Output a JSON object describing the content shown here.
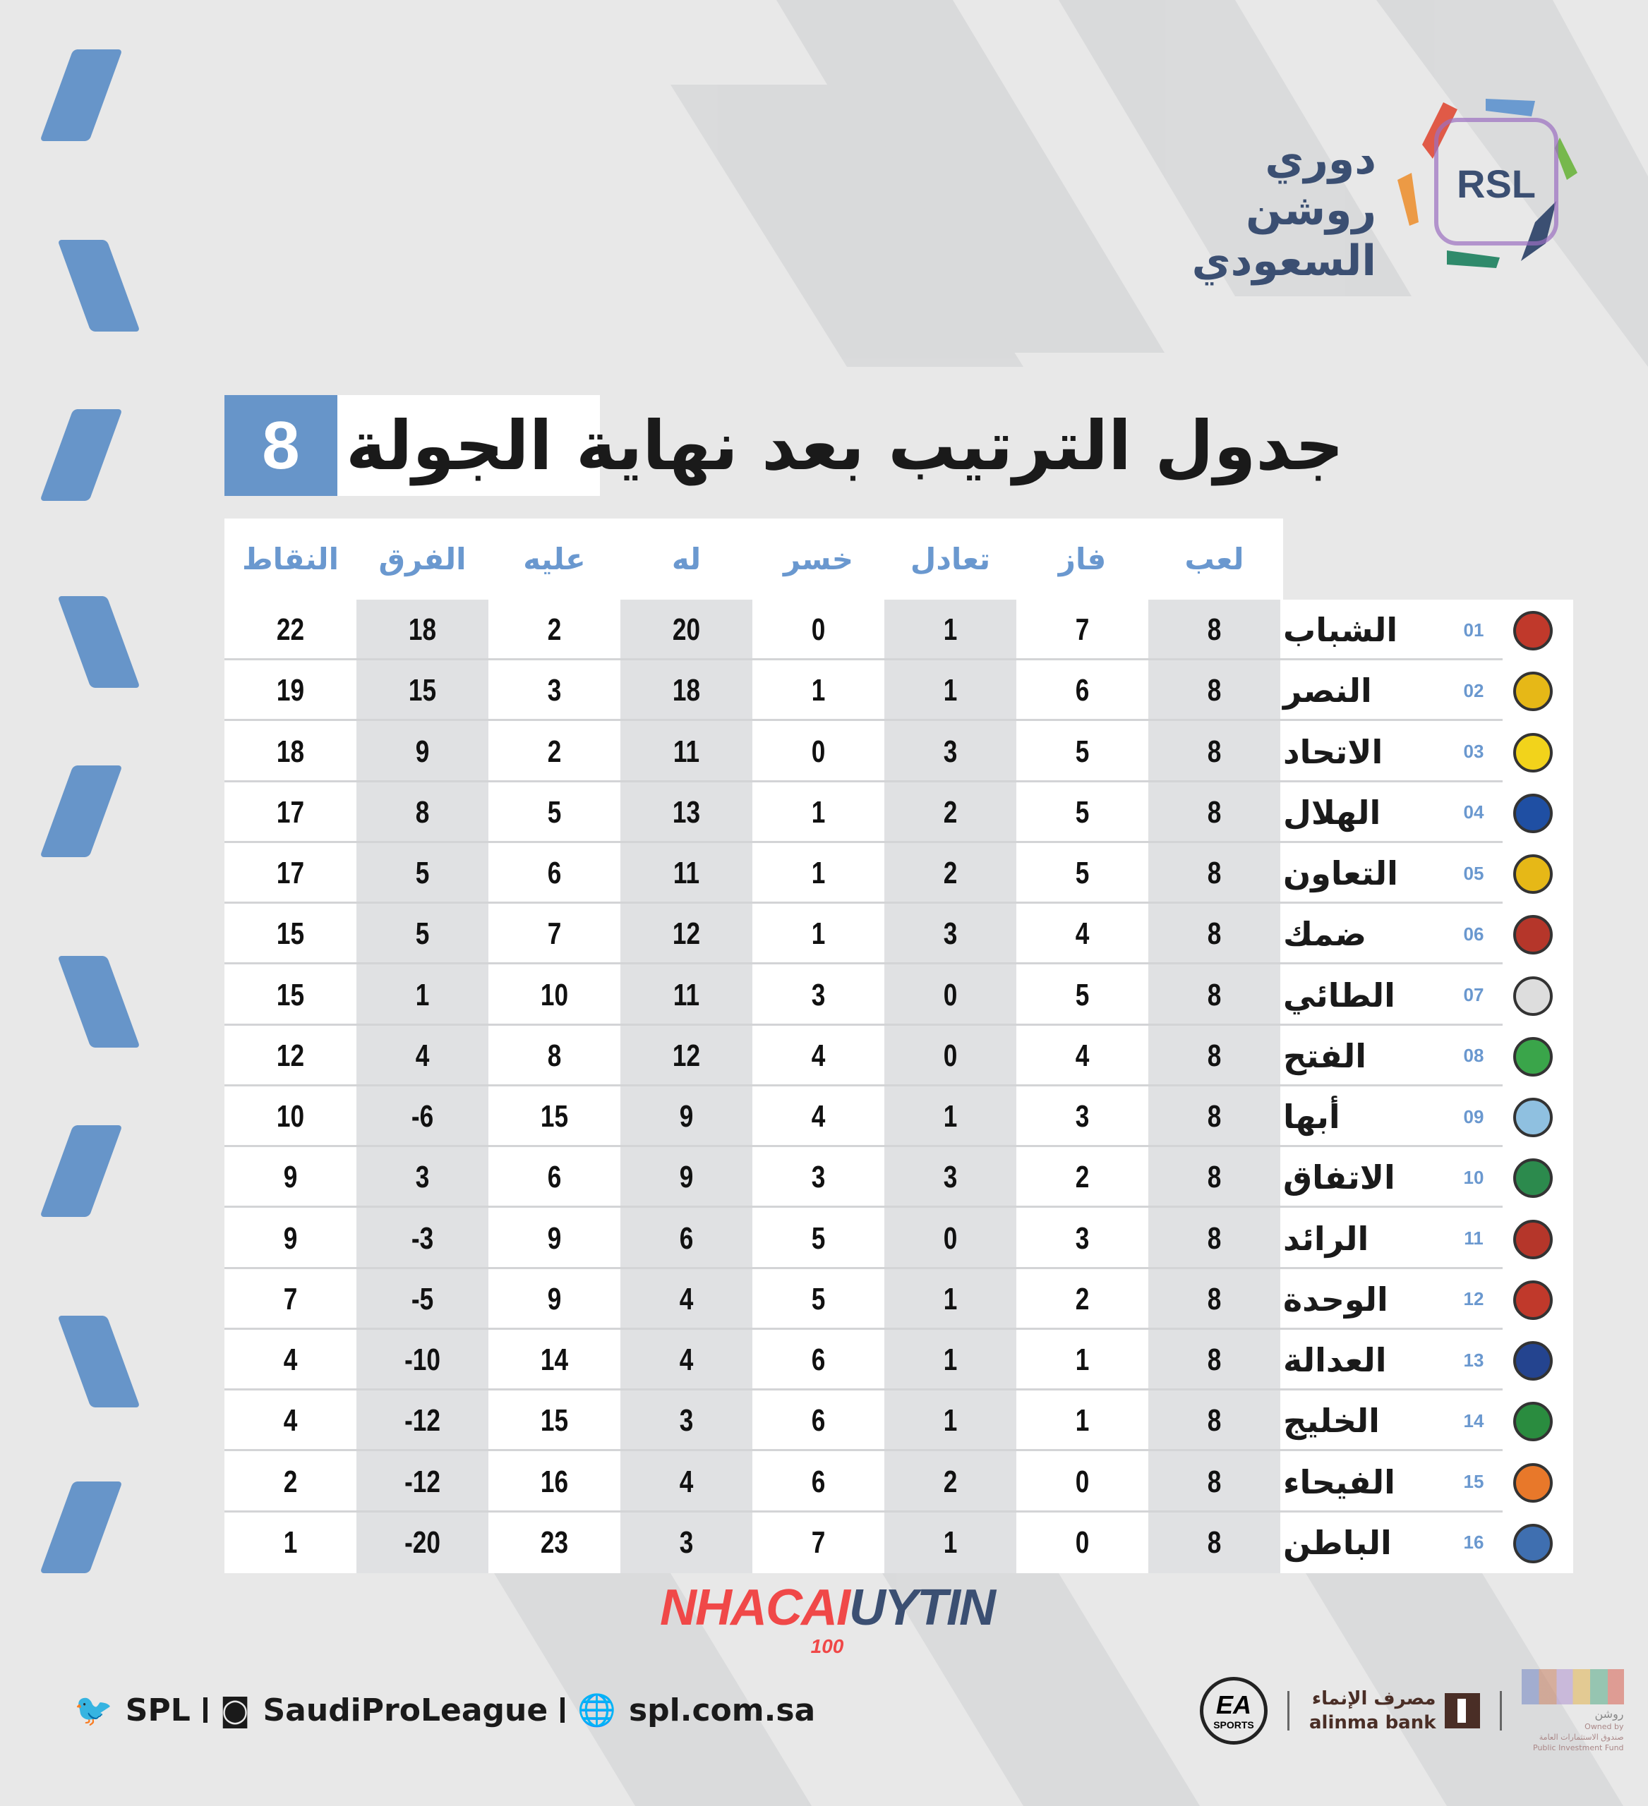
{
  "league_name": "دوري روشن السعودي",
  "league_logo_text": "RSL",
  "title": {
    "text": "جدول الترتيب بعد نهاية الجولة",
    "round": "8"
  },
  "columns": {
    "played": "لعب",
    "won": "فاز",
    "drawn": "تعادل",
    "lost": "خسر",
    "for": "له",
    "against": "عليه",
    "diff": "الفرق",
    "points": "النقاط"
  },
  "accent": "#6795c9",
  "standings": [
    {
      "pos": "01",
      "team": "الشباب",
      "played": 8,
      "won": 7,
      "drawn": 1,
      "lost": 0,
      "for": 20,
      "against": 2,
      "diff": 18,
      "points": 22,
      "crest": "#c0392b"
    },
    {
      "pos": "02",
      "team": "النصر",
      "played": 8,
      "won": 6,
      "drawn": 1,
      "lost": 1,
      "for": 18,
      "against": 3,
      "diff": 15,
      "points": 19,
      "crest": "#e6b817"
    },
    {
      "pos": "03",
      "team": "الاتحاد",
      "played": 8,
      "won": 5,
      "drawn": 3,
      "lost": 0,
      "for": 11,
      "against": 2,
      "diff": 9,
      "points": 18,
      "crest": "#f2d31b"
    },
    {
      "pos": "04",
      "team": "الهلال",
      "played": 8,
      "won": 5,
      "drawn": 2,
      "lost": 1,
      "for": 13,
      "against": 5,
      "diff": 8,
      "points": 17,
      "crest": "#1f4fa3"
    },
    {
      "pos": "05",
      "team": "التعاون",
      "played": 8,
      "won": 5,
      "drawn": 2,
      "lost": 1,
      "for": 11,
      "against": 6,
      "diff": 5,
      "points": 17,
      "crest": "#e6b817"
    },
    {
      "pos": "06",
      "team": "ضمك",
      "played": 8,
      "won": 4,
      "drawn": 3,
      "lost": 1,
      "for": 12,
      "against": 7,
      "diff": 5,
      "points": 15,
      "crest": "#b5362a"
    },
    {
      "pos": "07",
      "team": "الطائي",
      "played": 8,
      "won": 5,
      "drawn": 0,
      "lost": 3,
      "for": 11,
      "against": 10,
      "diff": 1,
      "points": 15,
      "crest": "#dddddd"
    },
    {
      "pos": "08",
      "team": "الفتح",
      "played": 8,
      "won": 4,
      "drawn": 0,
      "lost": 4,
      "for": 12,
      "against": 8,
      "diff": 4,
      "points": 12,
      "crest": "#3aa54a"
    },
    {
      "pos": "09",
      "team": "أبها",
      "played": 8,
      "won": 3,
      "drawn": 1,
      "lost": 4,
      "for": 9,
      "against": 15,
      "diff": -6,
      "points": 10,
      "crest": "#8fc0e0"
    },
    {
      "pos": "10",
      "team": "الاتفاق",
      "played": 8,
      "won": 2,
      "drawn": 3,
      "lost": 3,
      "for": 9,
      "against": 6,
      "diff": 3,
      "points": 9,
      "crest": "#2c8a4d"
    },
    {
      "pos": "11",
      "team": "الرائد",
      "played": 8,
      "won": 3,
      "drawn": 0,
      "lost": 5,
      "for": 6,
      "against": 9,
      "diff": -3,
      "points": 9,
      "crest": "#b5362a"
    },
    {
      "pos": "12",
      "team": "الوحدة",
      "played": 8,
      "won": 2,
      "drawn": 1,
      "lost": 5,
      "for": 4,
      "against": 9,
      "diff": -5,
      "points": 7,
      "crest": "#c0392b"
    },
    {
      "pos": "13",
      "team": "العدالة",
      "played": 8,
      "won": 1,
      "drawn": 1,
      "lost": 6,
      "for": 4,
      "against": 14,
      "diff": -10,
      "points": 4,
      "crest": "#24448f"
    },
    {
      "pos": "14",
      "team": "الخليج",
      "played": 8,
      "won": 1,
      "drawn": 1,
      "lost": 6,
      "for": 3,
      "against": 15,
      "diff": -12,
      "points": 4,
      "crest": "#2a8c3f"
    },
    {
      "pos": "15",
      "team": "الفيحاء",
      "played": 8,
      "won": 0,
      "drawn": 2,
      "lost": 6,
      "for": 4,
      "against": 16,
      "diff": -12,
      "points": 2,
      "crest": "#e8782a"
    },
    {
      "pos": "16",
      "team": "الباطن",
      "played": 8,
      "won": 0,
      "drawn": 1,
      "lost": 7,
      "for": 3,
      "against": 23,
      "diff": -20,
      "points": 1,
      "crest": "#3f6fb0"
    }
  ],
  "watermark": {
    "part1": "NHACAI",
    "part2": "UYTIN",
    "part3": "100"
  },
  "footer": {
    "twitter": "SPL",
    "instagram": "SaudiProLeague",
    "website": "spl.com.sa"
  },
  "sponsors": {
    "ea": "EA",
    "ea_sub": "SPORTS",
    "alinma_ar": "مصرف الإنماء",
    "alinma_en": "alinma bank",
    "roshn": "روشن",
    "pif_owned": "Owned by",
    "pif_ar": "صندوق الاستثمارات العامة",
    "pif_en": "Public Investment Fund"
  }
}
